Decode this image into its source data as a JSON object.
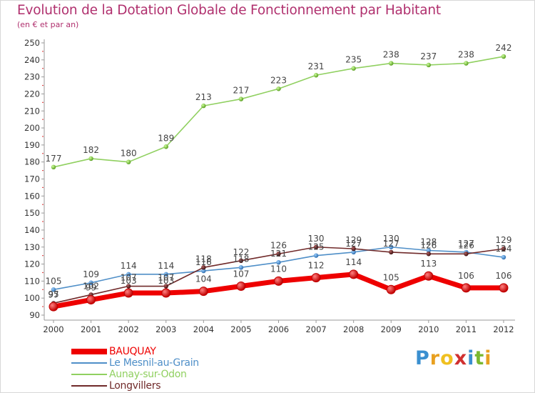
{
  "title": "Evolution de la Dotation Globale de Fonctionnement par Habitant",
  "subtitle": "(en € et par an)",
  "logo": {
    "letters": [
      "P",
      "r",
      "o",
      "x",
      "i",
      "t",
      "i"
    ],
    "colors": [
      "#3a8fd0",
      "#e8a020",
      "#f0c020",
      "#d03030",
      "#3a8fd0",
      "#7ab830",
      "#e8a020"
    ]
  },
  "chart_data": {
    "type": "line",
    "title": "Evolution de la Dotation Globale de Fonctionnement par Habitant",
    "subtitle": "(en € et par an)",
    "x": [
      "2000",
      "2001",
      "2002",
      "2003",
      "2004",
      "2005",
      "2006",
      "2007",
      "2008",
      "2009",
      "2010",
      "2011",
      "2012"
    ],
    "ylim": [
      90,
      250
    ],
    "yticks": [
      90,
      100,
      110,
      120,
      130,
      140,
      150,
      160,
      170,
      180,
      190,
      200,
      210,
      220,
      230,
      240,
      250
    ],
    "grid": false,
    "legend": "bottom-left",
    "series": [
      {
        "name": "BAUQUAY",
        "color": "#ee0000",
        "values": [
          95,
          99,
          103,
          103,
          104,
          107,
          110,
          112,
          114,
          105,
          113,
          106,
          106
        ]
      },
      {
        "name": "Le Mesnil-au-Grain",
        "color": "#4f8fc8",
        "values": [
          105,
          109,
          114,
          114,
          116,
          118,
          121,
          125,
          127,
          130,
          128,
          127,
          124
        ]
      },
      {
        "name": "Aunay-sur-Odon",
        "color": "#90d060",
        "values": [
          177,
          182,
          180,
          189,
          213,
          217,
          223,
          231,
          235,
          238,
          237,
          238,
          242
        ]
      },
      {
        "name": "Longvillers",
        "color": "#702a2a",
        "values": [
          97,
          102,
          107,
          107,
          118,
          122,
          126,
          130,
          129,
          127,
          126,
          126,
          129
        ]
      }
    ]
  }
}
